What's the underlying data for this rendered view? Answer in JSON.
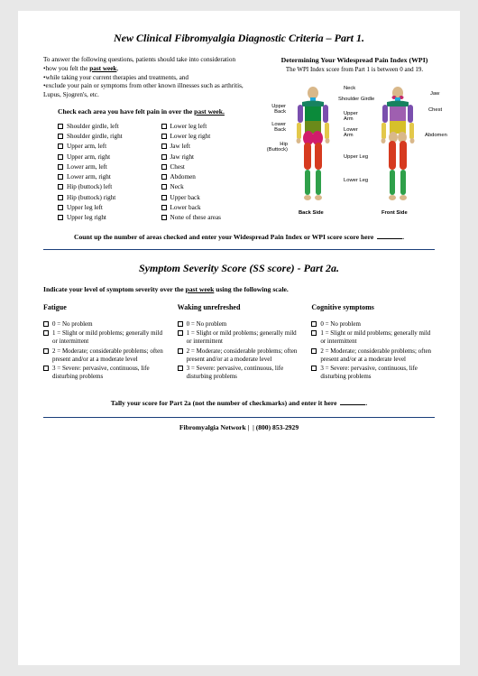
{
  "part1": {
    "title": "New Clinical Fibromyalgia Diagnostic Criteria – Part 1.",
    "intro_lead": "To answer the following questions, patients should take into consideration",
    "bullets": [
      {
        "prefix": "•how you felt the ",
        "bold": "past week",
        "suffix": ","
      },
      {
        "prefix": "•while taking your current therapies and treatments, and",
        "bold": "",
        "suffix": ""
      },
      {
        "prefix": "•exclude your pain or symptoms from other known illnesses such as arthritis, Lupus, Sjogren's, etc.",
        "bold": "",
        "suffix": ""
      }
    ],
    "wpi_heading": "Determining Your Widespread Pain Index (WPI)",
    "wpi_sub": "The WPI Index score from Part 1 is between 0 and 19.",
    "check_instruction_pre": "Check each area you have felt pain in over the ",
    "check_instruction_bold": "past week.",
    "areas_col1": [
      "Shoulder girdle, left",
      "Shoulder girdle, right",
      "Upper arm, left",
      "Upper arm, right",
      "Lower arm, left",
      "Lower arm, right",
      "Hip (buttock) left",
      "Hip (buttock) right",
      "Upper leg left",
      "Upper leg right"
    ],
    "areas_col2": [
      "Lower leg left",
      "Lower leg right",
      "Jaw left",
      "Jaw right",
      "Chest",
      "Abdomen",
      "Neck",
      "Upper back",
      "Lower back",
      "None of these areas"
    ],
    "diagram_labels": {
      "neck": "Neck",
      "shoulder_girdle": "Shoulder Girdle",
      "upper_back": "Upper Back",
      "lower_back": "Lower Back",
      "upper_arm": "Upper Arm",
      "lower_arm": "Lower Arm",
      "hip": "Hip (Buttock)",
      "upper_leg": "Upper Leg",
      "lower_leg": "Lower Leg",
      "jaw": "Jaw",
      "chest": "Chest",
      "abdomen": "Abdomen",
      "back_side": "Back Side",
      "front_side": "Front Side"
    },
    "count_up": "Count up the number of areas checked and enter your Widespread Pain Index or WPI score score here"
  },
  "part2a": {
    "title": "Symptom Severity Score (SS score) - Part 2a.",
    "indicate_pre": "Indicate your level of symptom severity over the ",
    "indicate_bold": "past week",
    "indicate_post": " using the following scale.",
    "columns": [
      {
        "heading": "Fatigue"
      },
      {
        "heading": "Waking unrefreshed"
      },
      {
        "heading": "Cognitive symptoms"
      }
    ],
    "scale": [
      "0 = No problem",
      "1 = Slight or mild problems; generally mild or intermittent",
      "2 = Moderate; considerable problems; often present and/or at a moderate level",
      "3 = Severe: pervasive, continuous, life disturbing problems"
    ],
    "tally": "Tally your score for Part 2a (not the number of checkmarks) and enter it here"
  },
  "footer": {
    "org": "Fibromyalgia Network",
    "phone": "(800) 853-2929"
  },
  "colors": {
    "neck": "#1fa8d8",
    "shoulder": "#17825f",
    "upper_back": "#0b8a3a",
    "lower_back": "#6b8a1a",
    "upper_arm": "#7a4fae",
    "lower_arm": "#e3c84a",
    "hip": "#d11b6b",
    "upper_leg": "#d63a1f",
    "lower_leg": "#2fa04a",
    "jaw": "#c4296b",
    "chest": "#9f5fb0",
    "abdomen": "#d6c02a",
    "skin": "#d9b88a"
  }
}
